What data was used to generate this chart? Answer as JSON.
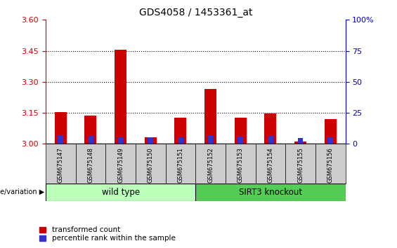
{
  "title": "GDS4058 / 1453361_at",
  "samples": [
    "GSM675147",
    "GSM675148",
    "GSM675149",
    "GSM675150",
    "GSM675151",
    "GSM675152",
    "GSM675153",
    "GSM675154",
    "GSM675155",
    "GSM675156"
  ],
  "transformed_count": [
    3.152,
    3.135,
    3.455,
    3.03,
    3.128,
    3.265,
    3.125,
    3.147,
    3.01,
    3.12
  ],
  "percentile_rank": [
    7.0,
    6.5,
    5.5,
    5.0,
    5.5,
    7.0,
    6.0,
    6.5,
    4.5,
    5.5
  ],
  "percentile_scale_factor": 0.006,
  "ylim_left": [
    3.0,
    3.6
  ],
  "ylim_right": [
    0,
    100
  ],
  "yticks_left": [
    3.0,
    3.15,
    3.3,
    3.45,
    3.6
  ],
  "yticks_right": [
    0,
    25,
    50,
    75,
    100
  ],
  "bar_bottom": 3.0,
  "bar_color_red": "#cc0000",
  "bar_color_blue": "#3333cc",
  "group1_label": "wild type",
  "group2_label": "SIRT3 knockout",
  "group1_indices": [
    0,
    1,
    2,
    3,
    4
  ],
  "group2_indices": [
    5,
    6,
    7,
    8,
    9
  ],
  "group1_color": "#bbffbb",
  "group2_color": "#55cc55",
  "xlabel_label": "genotype/variation",
  "legend_red": "transformed count",
  "legend_blue": "percentile rank within the sample",
  "background_color": "#ffffff",
  "sample_box_color": "#cccccc",
  "grid_color": "#000000",
  "right_axis_color": "#0000cc",
  "left_axis_color": "#cc0000"
}
